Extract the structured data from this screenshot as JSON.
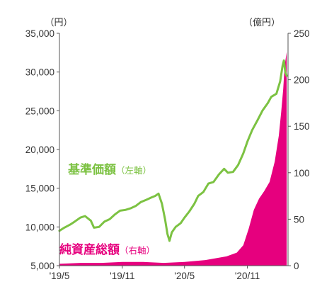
{
  "chart_data": {
    "type": "line",
    "x_tick_labels": [
      "'19/5",
      "'19/11",
      "'20/5",
      "'20/11"
    ],
    "y_left": {
      "unit": "（円）",
      "min": 5000,
      "max": 35000,
      "ticks": [
        "35,000",
        "30,000",
        "25,000",
        "20,000",
        "15,000",
        "10,000",
        "5,000"
      ]
    },
    "y_right": {
      "unit": "（億円）",
      "min": 0,
      "max": 250,
      "ticks": [
        "250",
        "200",
        "150",
        "100",
        "50",
        "0"
      ]
    },
    "series": [
      {
        "name": "基準価額",
        "axis_note": "（左軸）",
        "kind": "line",
        "axis": "left",
        "color": "#7cc242",
        "points": [
          [
            "2019-05-01",
            9500
          ],
          [
            "2019-05-15",
            9900
          ],
          [
            "2019-06-01",
            10300
          ],
          [
            "2019-06-15",
            10700
          ],
          [
            "2019-07-01",
            11200
          ],
          [
            "2019-07-15",
            11400
          ],
          [
            "2019-08-01",
            10800
          ],
          [
            "2019-08-10",
            9900
          ],
          [
            "2019-08-25",
            10000
          ],
          [
            "2019-09-10",
            10700
          ],
          [
            "2019-09-25",
            11000
          ],
          [
            "2019-10-10",
            11600
          ],
          [
            "2019-10-25",
            12100
          ],
          [
            "2019-11-10",
            12200
          ],
          [
            "2019-11-25",
            12400
          ],
          [
            "2019-12-10",
            12700
          ],
          [
            "2019-12-25",
            13200
          ],
          [
            "2020-01-10",
            13500
          ],
          [
            "2020-01-25",
            13800
          ],
          [
            "2020-02-05",
            14000
          ],
          [
            "2020-02-15",
            14300
          ],
          [
            "2020-02-25",
            13000
          ],
          [
            "2020-03-05",
            11000
          ],
          [
            "2020-03-12",
            9100
          ],
          [
            "2020-03-18",
            8200
          ],
          [
            "2020-03-25",
            9300
          ],
          [
            "2020-04-05",
            10000
          ],
          [
            "2020-04-20",
            10500
          ],
          [
            "2020-05-01",
            11200
          ],
          [
            "2020-05-15",
            12000
          ],
          [
            "2020-05-30",
            13000
          ],
          [
            "2020-06-10",
            14000
          ],
          [
            "2020-06-25",
            14500
          ],
          [
            "2020-07-10",
            15600
          ],
          [
            "2020-07-25",
            15800
          ],
          [
            "2020-08-10",
            16800
          ],
          [
            "2020-08-25",
            17500
          ],
          [
            "2020-09-05",
            17000
          ],
          [
            "2020-09-20",
            17100
          ],
          [
            "2020-10-05",
            18000
          ],
          [
            "2020-10-20",
            19500
          ],
          [
            "2020-11-01",
            21000
          ],
          [
            "2020-11-15",
            22500
          ],
          [
            "2020-12-01",
            23800
          ],
          [
            "2020-12-15",
            25000
          ],
          [
            "2020-12-31",
            26000
          ],
          [
            "2021-01-10",
            26800
          ],
          [
            "2021-01-25",
            27200
          ],
          [
            "2021-02-05",
            28800
          ],
          [
            "2021-02-12",
            30800
          ],
          [
            "2021-02-16",
            31500
          ],
          [
            "2021-02-20",
            30000
          ],
          [
            "2021-02-24",
            29500
          ]
        ]
      },
      {
        "name": "純資産総額",
        "axis_note": "（右軸）",
        "kind": "area",
        "axis": "right",
        "color": "#e6007e",
        "points": [
          [
            "2019-05-01",
            2
          ],
          [
            "2019-07-01",
            3
          ],
          [
            "2019-09-01",
            3
          ],
          [
            "2019-11-01",
            4
          ],
          [
            "2020-01-01",
            4
          ],
          [
            "2020-03-01",
            3
          ],
          [
            "2020-05-01",
            4
          ],
          [
            "2020-07-01",
            6
          ],
          [
            "2020-08-01",
            8
          ],
          [
            "2020-09-01",
            10
          ],
          [
            "2020-10-01",
            14
          ],
          [
            "2020-10-20",
            22
          ],
          [
            "2020-11-05",
            40
          ],
          [
            "2020-11-20",
            60
          ],
          [
            "2020-12-05",
            72
          ],
          [
            "2020-12-20",
            80
          ],
          [
            "2021-01-05",
            90
          ],
          [
            "2021-01-20",
            112
          ],
          [
            "2021-02-01",
            140
          ],
          [
            "2021-02-08",
            165
          ],
          [
            "2021-02-14",
            190
          ],
          [
            "2021-02-18",
            215
          ],
          [
            "2021-02-24",
            230
          ]
        ]
      }
    ]
  }
}
